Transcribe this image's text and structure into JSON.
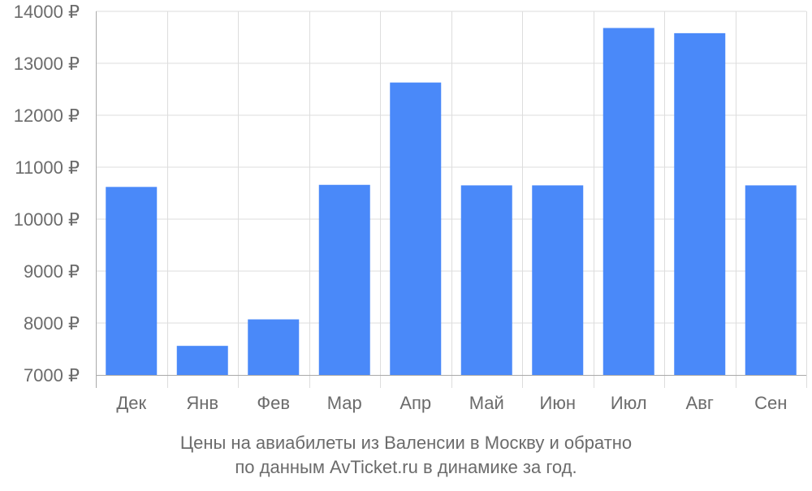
{
  "chart_data": {
    "type": "bar",
    "categories": [
      "Дек",
      "Янв",
      "Фев",
      "Мар",
      "Апр",
      "Май",
      "Июн",
      "Июл",
      "Авг",
      "Сен"
    ],
    "values": [
      10620,
      7560,
      8070,
      10660,
      12630,
      10650,
      10650,
      13680,
      13580,
      10650
    ],
    "yticks": [
      "7000 ₽",
      "8000 ₽",
      "9000 ₽",
      "10000 ₽",
      "11000 ₽",
      "12000 ₽",
      "13000 ₽",
      "14000 ₽"
    ],
    "ylim": [
      7000,
      14000
    ],
    "grid": true,
    "title": "",
    "xlabel": "",
    "ylabel": ""
  },
  "caption": {
    "line1": "Цены на авиабилеты из Валенсии в Москву и обратно",
    "line2": "по данным AvTicket.ru в динамике за год."
  },
  "colors": {
    "bar": "#4a89f9",
    "grid": "#dddddd",
    "axis": "#aaaaaa",
    "label": "#6b6b6b"
  }
}
